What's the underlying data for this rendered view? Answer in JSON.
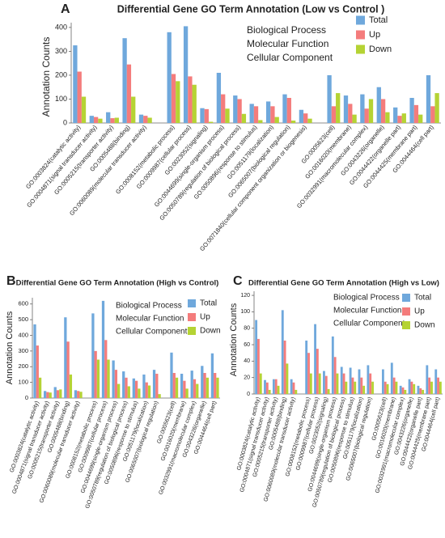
{
  "chart_data": [
    {
      "type": "bar",
      "panel": "A",
      "title": "Differential Gene GO Term Annotation (Low vs Control )",
      "y_label": "Annotation Counts",
      "groups": [
        {
          "name": "Biological Process",
          "color": "#f08a8a"
        },
        {
          "name": "Molecular Function",
          "color": "#20b39e"
        },
        {
          "name": "Cellular Component",
          "color": "#9b72d8"
        }
      ],
      "categories": [
        "GO:0003824(catalytic activity)",
        "GO:0004871(signal transducer activity)",
        "GO:0005215(transporter activity)",
        "GO:0005488(binding)",
        "GO:0060089(molecular transducer activity)",
        "GO:0008152(metabolic process)",
        "GO:0009987(cellular process)",
        "GO:0023052(signaling)",
        "GO:0044699(single-organism process)",
        "GO:0050789(regulation of biological process)",
        "GO:0050896(response to stimulus)",
        "GO:0051179(localization)",
        "GO:0065007(biological regulation)",
        "GO:0071840(cellular component organization or biogenesis)",
        "GO:0005623(cell)",
        "GO:0016020(membrane)",
        "GO:0032991(macromolecular complex)",
        "GO:0043226(organelle)",
        "GO:0044422(organelle part)",
        "GO:0044425(membrane part)",
        "GO:0044464(cell part)"
      ],
      "category_group": [
        1,
        1,
        1,
        1,
        1,
        0,
        0,
        0,
        0,
        0,
        0,
        0,
        0,
        0,
        2,
        2,
        2,
        2,
        2,
        2,
        2
      ],
      "series": [
        {
          "name": "Total",
          "color": "#6fa8dc",
          "values": [
            325,
            30,
            45,
            355,
            35,
            380,
            405,
            62,
            210,
            115,
            80,
            90,
            120,
            55,
            200,
            115,
            120,
            150,
            65,
            105,
            200
          ]
        },
        {
          "name": "Up",
          "color": "#f47c7c",
          "values": [
            215,
            25,
            20,
            245,
            30,
            205,
            195,
            58,
            120,
            100,
            70,
            70,
            105,
            40,
            70,
            80,
            60,
            100,
            30,
            75,
            70
          ]
        },
        {
          "name": "Down",
          "color": "#b5d334",
          "values": [
            110,
            18,
            22,
            110,
            22,
            175,
            160,
            5,
            60,
            38,
            12,
            25,
            10,
            18,
            125,
            35,
            100,
            45,
            40,
            35,
            125
          ]
        }
      ],
      "ylim": [
        0,
        420
      ],
      "yticks": [
        0,
        100,
        200,
        300,
        400
      ]
    },
    {
      "type": "bar",
      "panel": "B",
      "title": "Differential Gene GO Term Annotation (High vs Control)",
      "y_label": "Annotation Counts",
      "groups": [
        {
          "name": "Biological Process",
          "color": "#f08a8a"
        },
        {
          "name": "Molecular Function",
          "color": "#20b39e"
        },
        {
          "name": "Cellular Component",
          "color": "#9b72d8"
        }
      ],
      "categories": [
        "GO:0003824(catalytic activity)",
        "GO:0004871(signal transducer activity)",
        "GO:0005215(transporter activity)",
        "GO:0005488(binding)",
        "GO:0060089(molecular transducer activity)",
        "GO:0008152(metabolic process)",
        "GO:0009987(cellular process)",
        "GO:0044699(single-organism process)",
        "GO:0050789(regulation of biological process)",
        "GO:0050896(response to stimulus)",
        "GO:0051179(localization)",
        "GO:0065007(biological regulation)",
        "GO:0005623(cell)",
        "GO:0016020(membrane)",
        "GO:0032991(macromolecular complex)",
        "GO:0043226(organelle)",
        "GO:0044464(cell part)"
      ],
      "category_group": [
        1,
        1,
        1,
        1,
        1,
        0,
        0,
        0,
        0,
        0,
        0,
        0,
        2,
        2,
        2,
        2,
        2
      ],
      "series": [
        {
          "name": "Total",
          "color": "#6fa8dc",
          "values": [
            470,
            45,
            70,
            515,
            50,
            540,
            620,
            240,
            170,
            125,
            150,
            180,
            290,
            155,
            175,
            205,
            285
          ]
        },
        {
          "name": "Up",
          "color": "#f47c7c",
          "values": [
            335,
            38,
            50,
            360,
            45,
            300,
            370,
            180,
            130,
            110,
            100,
            155,
            160,
            110,
            120,
            160,
            160
          ]
        },
        {
          "name": "Down",
          "color": "#b5d334",
          "values": [
            130,
            35,
            55,
            150,
            40,
            245,
            245,
            90,
            75,
            60,
            80,
            25,
            130,
            60,
            90,
            130,
            130
          ]
        }
      ],
      "ylim": [
        0,
        640
      ],
      "yticks": [
        0,
        100,
        200,
        300,
        400,
        500,
        600
      ]
    },
    {
      "type": "bar",
      "panel": "C",
      "title": "Differential Gene GO Term Annotation (High vs Low)",
      "y_label": "Annotation Counts",
      "groups": [
        {
          "name": "Biological Process",
          "color": "#f08a8a"
        },
        {
          "name": "Molecular Function",
          "color": "#20b39e"
        },
        {
          "name": "Cellular Component",
          "color": "#9b72d8"
        }
      ],
      "categories": [
        "GO:0003824(catalytic activity)",
        "GO:0004871(signal transducer activity)",
        "GO:0005215(transporter activity)",
        "GO:0005488(binding)",
        "GO:0060089(molecular transducer activity)",
        "GO:0008152(metabolic process)",
        "GO:0009987(cellular process)",
        "GO:0023052(signaling)",
        "GO:0044699(single-organism process)",
        "GO:0050789(regulation of biological process)",
        "GO:0050896(response to stimulus)",
        "GO:0051179(localization)",
        "GO:0065007(biological regulation)",
        "GO:0005623(cell)",
        "GO:0016020(membrane)",
        "GO:0032991(macromolecular complex)",
        "GO:0043226(organelle)",
        "GO:0044422(organelle part)",
        "GO:0044425(membrane part)",
        "GO:0044464(cell part)"
      ],
      "category_group": [
        1,
        1,
        1,
        1,
        1,
        0,
        0,
        0,
        0,
        0,
        0,
        0,
        0,
        2,
        2,
        2,
        2,
        2,
        2,
        2
      ],
      "series": [
        {
          "name": "Total",
          "color": "#6fa8dc",
          "values": [
            90,
            17,
            18,
            102,
            18,
            65,
            85,
            28,
            70,
            33,
            32,
            30,
            35,
            30,
            38,
            10,
            18,
            10,
            35,
            30
          ]
        },
        {
          "name": "Up",
          "color": "#f47c7c",
          "values": [
            67,
            14,
            18,
            65,
            14,
            50,
            55,
            22,
            45,
            25,
            20,
            20,
            25,
            15,
            20,
            8,
            15,
            7,
            20,
            20
          ]
        },
        {
          "name": "Down",
          "color": "#b5d334",
          "values": [
            25,
            5,
            10,
            37,
            5,
            25,
            25,
            6,
            25,
            15,
            15,
            10,
            15,
            12,
            15,
            5,
            12,
            5,
            15,
            15
          ]
        }
      ],
      "ylim": [
        0,
        125
      ],
      "yticks": [
        0,
        20,
        40,
        60,
        80,
        100,
        120
      ]
    }
  ]
}
